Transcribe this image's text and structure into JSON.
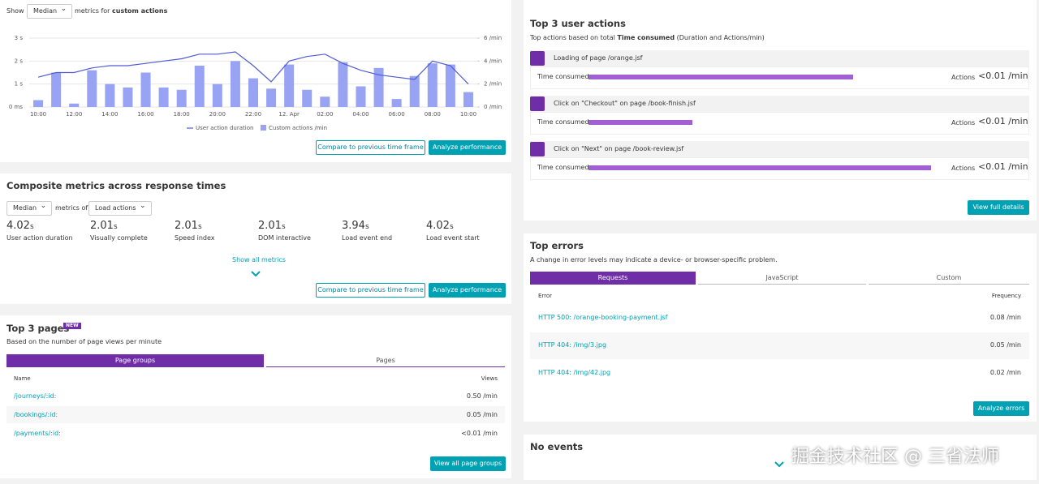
{
  "chart_data": {
    "type": "bar-line",
    "categories": [
      "10:00",
      null,
      "12:00",
      null,
      "14:00",
      null,
      "16:00",
      null,
      "18:00",
      null,
      "20:00",
      null,
      "22:00",
      null,
      "12. Apr",
      null,
      "02:00",
      null,
      "04:00",
      null,
      "06:00",
      null,
      "08:00",
      null,
      "10:00"
    ],
    "series": [
      {
        "name": "User action duration",
        "color": "#4f5bd5",
        "kind": "line",
        "axis": "y",
        "values": [
          1.3,
          1.5,
          1.5,
          1.7,
          1.8,
          1.8,
          1.9,
          2.0,
          2.1,
          2.3,
          2.3,
          2.4,
          1.8,
          1.1,
          2.0,
          2.2,
          2.3,
          1.9,
          1.6,
          1.4,
          1.3,
          1.2,
          2.0,
          1.8,
          1.0
        ]
      },
      {
        "name": "Custom actions /min",
        "color": "#99a3f3",
        "kind": "bar",
        "axis": "y2",
        "values": [
          0.6,
          3.0,
          0.3,
          3.2,
          2.0,
          1.7,
          3.0,
          1.7,
          1.5,
          3.6,
          2.0,
          4.0,
          2.5,
          1.6,
          3.7,
          1.5,
          0.9,
          3.9,
          1.8,
          3.4,
          0.7,
          2.7,
          3.8,
          3.7,
          1.3
        ]
      }
    ],
    "ylim": [
      0,
      3
    ],
    "yticks": [
      {
        "value": 0,
        "label": "0 ms"
      },
      {
        "value": 1,
        "label": "1 s"
      },
      {
        "value": 2,
        "label": "2 s"
      },
      {
        "value": 3,
        "label": "3 s"
      }
    ],
    "y2lim": [
      0,
      6
    ],
    "y2ticks": [
      {
        "value": 0,
        "label": "0 /min"
      },
      {
        "value": 2,
        "label": "2 /min"
      },
      {
        "value": 4,
        "label": "4 /min"
      },
      {
        "value": 6,
        "label": "6 /min"
      }
    ],
    "grid": true
  },
  "top_panel": {
    "show": "Show",
    "dropdown": "Median",
    "metrics_for": "metrics for",
    "metrics_for_bold": "custom actions",
    "buttons": [
      "Compare to previous time frame",
      "Analyze performance"
    ]
  },
  "composite": {
    "title": "Composite metrics across response times",
    "dropdown1": "Median",
    "metrics_of": "metrics of",
    "dropdown2": "Load actions",
    "metrics": [
      {
        "value": "4.02",
        "unit": "s",
        "label": "User action duration"
      },
      {
        "value": "2.01",
        "unit": "s",
        "label": "Visually complete"
      },
      {
        "value": "2.01",
        "unit": "s",
        "label": "Speed index"
      },
      {
        "value": "2.01",
        "unit": "s",
        "label": "DOM interactive"
      },
      {
        "value": "3.94",
        "unit": "s",
        "label": "Load event end"
      },
      {
        "value": "4.02",
        "unit": "s",
        "label": "Load event start"
      }
    ],
    "show_all": "Show all metrics",
    "buttons": [
      "Compare to previous time frame",
      "Analyze performance"
    ]
  },
  "pages": {
    "title": "Top 3 pages",
    "badge": "NEW",
    "subtitle": "Based on the number of page views per minute",
    "tabs": [
      "Page groups",
      "Pages"
    ],
    "columns": [
      "Name",
      "Views"
    ],
    "rows": [
      [
        "/journeys/:id:",
        "0.50 /min"
      ],
      [
        "/bookings/:id:",
        "0.05 /min"
      ],
      [
        "/payments/:id:",
        "<0.01 /min"
      ]
    ],
    "button": "View all page groups"
  },
  "actions": {
    "title": "Top 3 user actions",
    "subtitle_pre": "Top actions based on total",
    "subtitle_bold": "Time consumed",
    "subtitle_post": "(Duration and Actions/min)",
    "items": [
      {
        "name": "Loading of page /orange.jsf",
        "time_label": "Time consumed",
        "time_share": 74,
        "actions_label": "Actions",
        "rate": "<0.01 /min"
      },
      {
        "name": "Click on \"Checkout\" on page /book-finish.jsf",
        "time_label": "Time consumed",
        "time_share": 29,
        "actions_label": "Actions",
        "rate": "<0.01 /min"
      },
      {
        "name": "Click on \"Next\" on page /book-review.jsf",
        "time_label": "Time consumed",
        "time_share": 96,
        "actions_label": "Actions",
        "rate": "<0.01 /min"
      }
    ],
    "button": "View full details"
  },
  "errors": {
    "title": "Top errors",
    "subtitle": "A change in error levels may indicate a device- or browser-specific problem.",
    "tabs": [
      "Requests",
      "JavaScript",
      "Custom"
    ],
    "columns": [
      "Error",
      "Frequency"
    ],
    "rows": [
      [
        "HTTP 500: /orange-booking-payment.jsf",
        "0.08 /min"
      ],
      [
        "HTTP 404: /img/3.jpg",
        "0.05 /min"
      ],
      [
        "HTTP 404: /img/42.jpg",
        "0.02 /min"
      ]
    ],
    "button": "Analyze errors"
  },
  "events": {
    "title": "No events"
  },
  "watermark": "掘金技术社区 @ 三省法师"
}
